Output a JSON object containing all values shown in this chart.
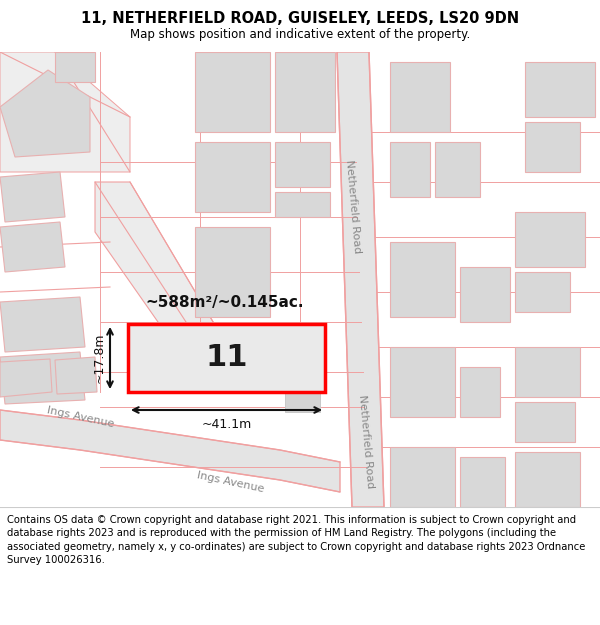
{
  "title_line1": "11, NETHERFIELD ROAD, GUISELEY, LEEDS, LS20 9DN",
  "title_line2": "Map shows position and indicative extent of the property.",
  "footer_text": "Contains OS data © Crown copyright and database right 2021. This information is subject to Crown copyright and database rights 2023 and is reproduced with the permission of HM Land Registry. The polygons (including the associated geometry, namely x, y co-ordinates) are subject to Crown copyright and database rights 2023 Ordnance Survey 100026316.",
  "property_label": "11",
  "area_label": "~588m²/~0.145ac.",
  "width_label": "~41.1m",
  "height_label": "~17.8m",
  "road_label_nr_top": "Netherfield Road",
  "road_label_nr_bot": "Netherfield Road",
  "road_label_ia_left": "Ings Avenue",
  "road_label_ia_right": "Ings Avenue",
  "bg_color": "#ffffff",
  "map_bg": "#f7f7f7",
  "road_fill": "#e4e4e4",
  "road_stroke": "#f0a0a0",
  "block_fill": "#d8d8d8",
  "block_stroke": "#e8b0b0",
  "prop_fill": "#eaeaea",
  "prop_stroke": "#ff0000",
  "title_fontsize": 10.5,
  "subtitle_fontsize": 8.5,
  "footer_fontsize": 7.2
}
